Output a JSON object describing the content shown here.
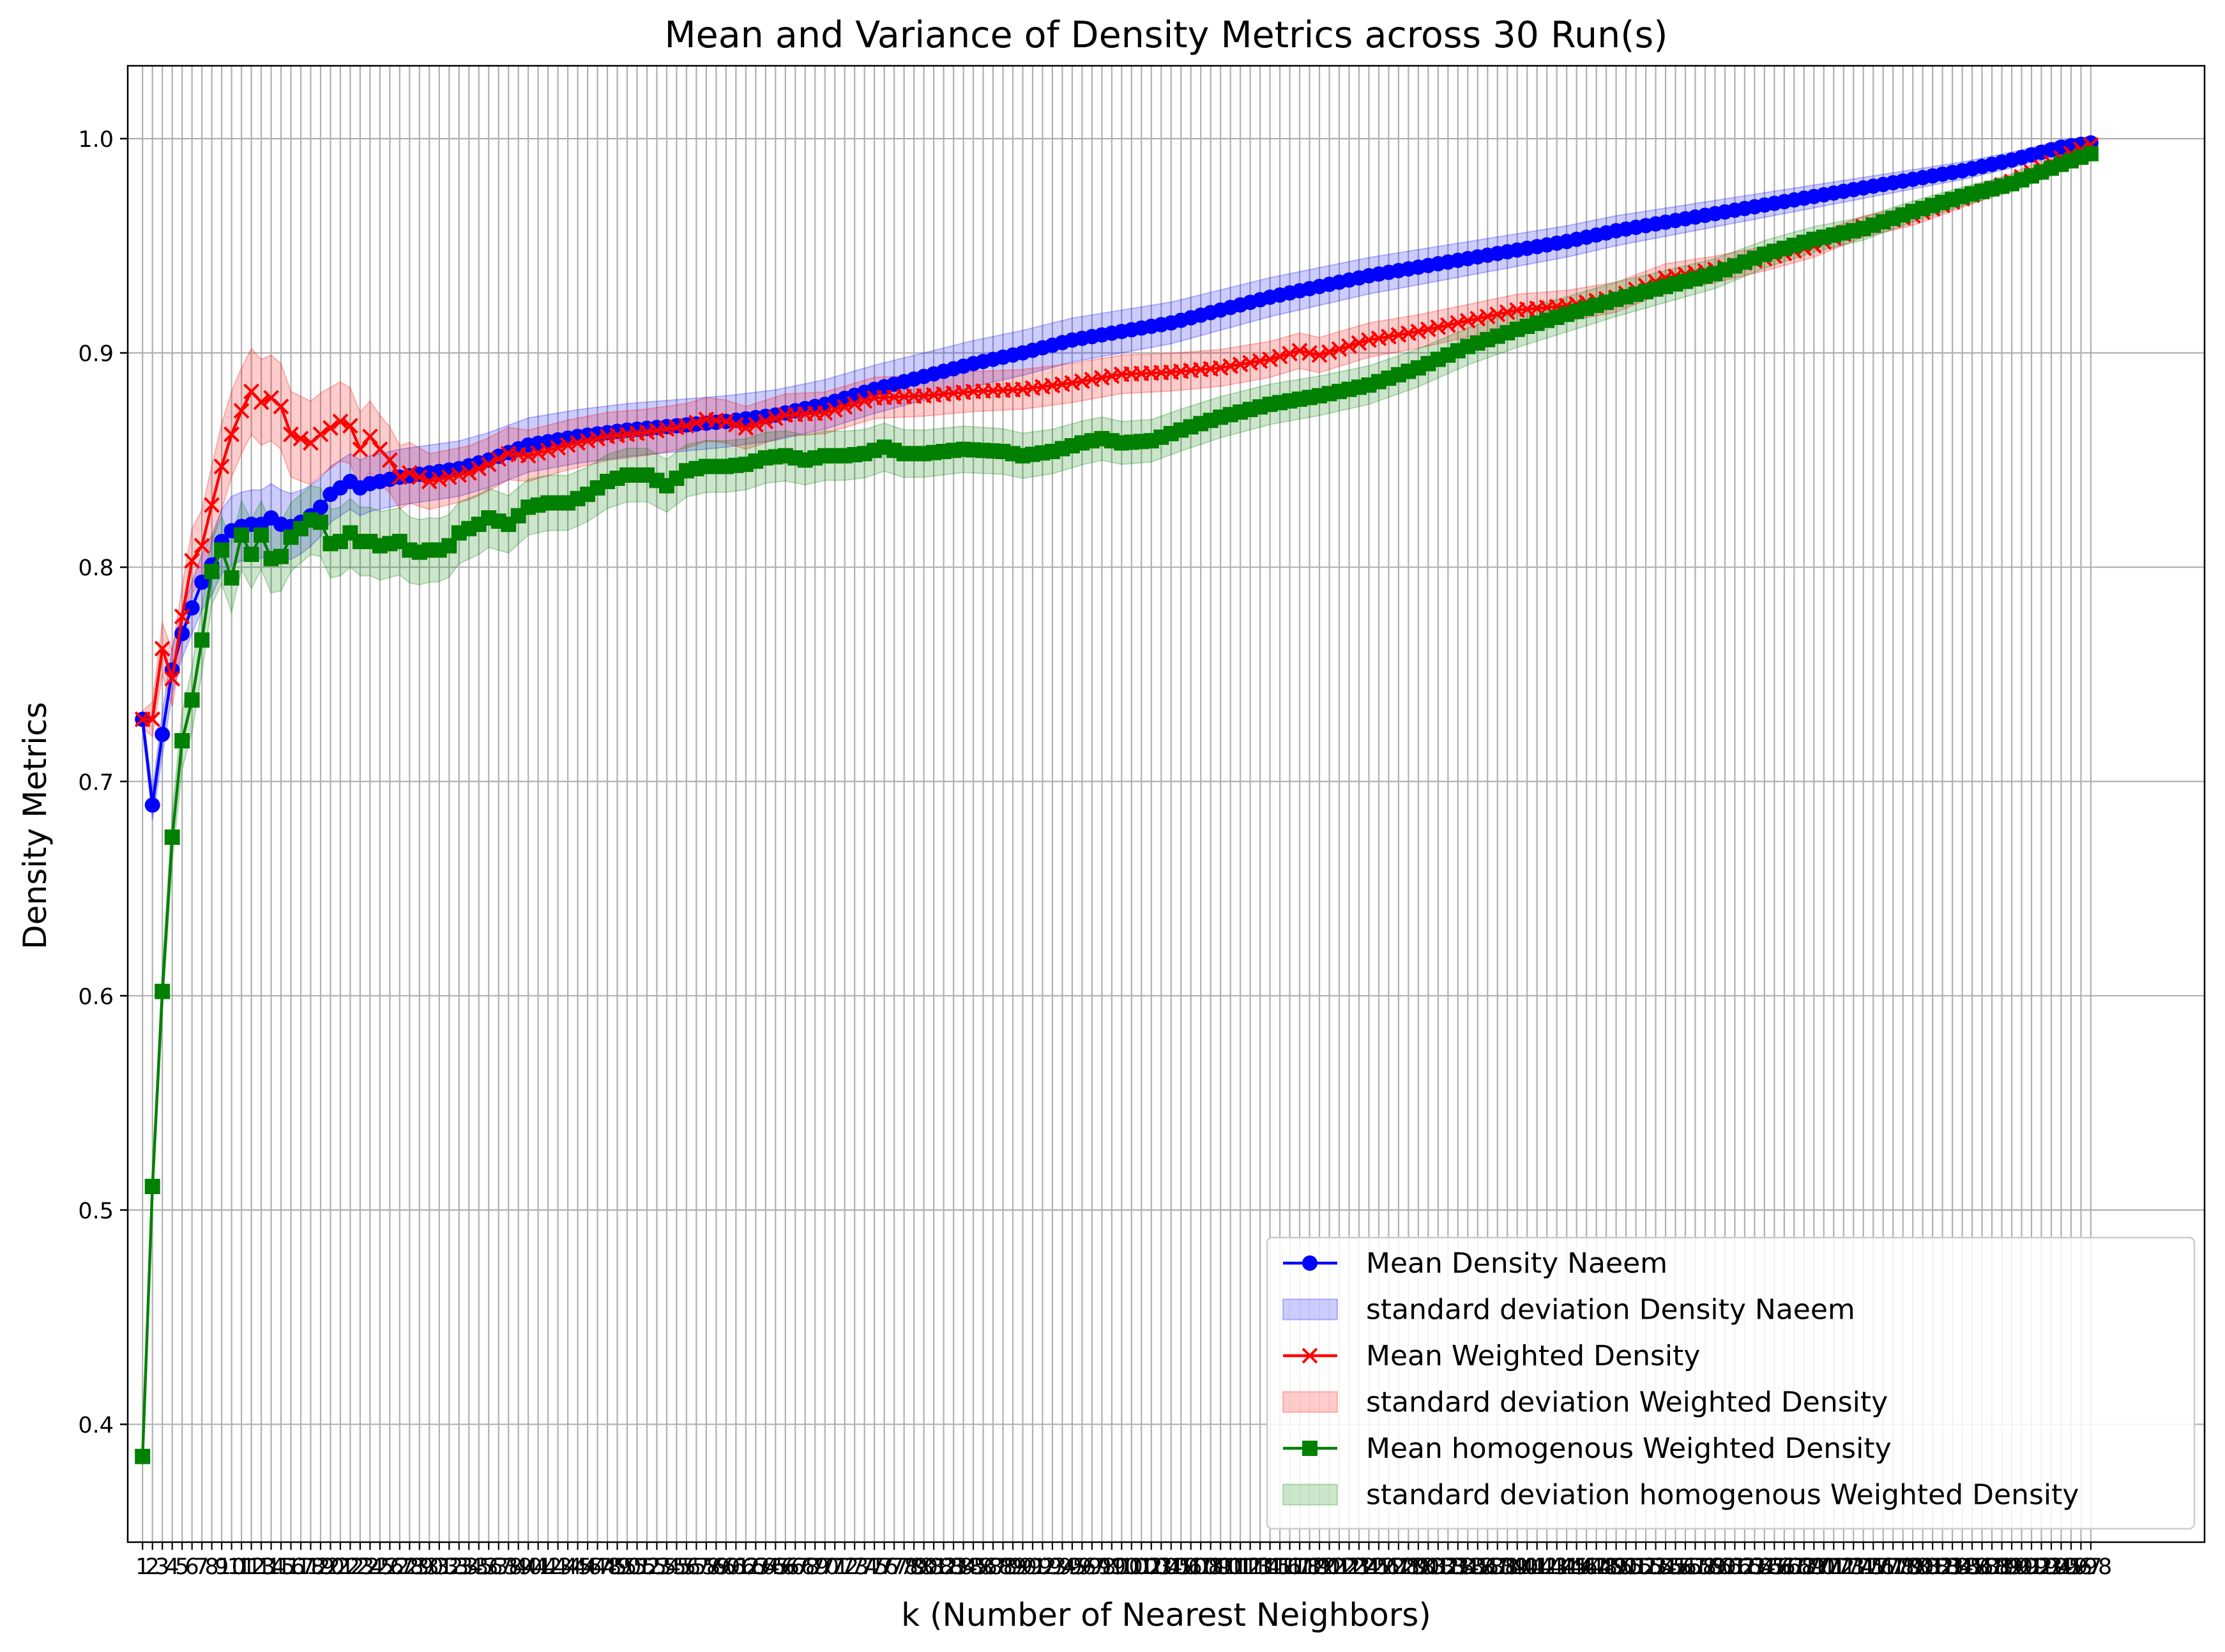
{
  "chart_data": {
    "type": "line",
    "title": "Mean and Variance of Density Metrics across 30 Run(s)",
    "xlabel": "k (Number of Nearest Neighbors)",
    "ylabel": "Density Metrics",
    "xlim": [
      -0.5,
      209.5
    ],
    "ylim": [
      0.345,
      1.034
    ],
    "k_min": 1,
    "k_max": 198,
    "y_ticks": [
      0.4,
      0.5,
      0.6,
      0.7,
      0.8,
      0.9,
      1.0
    ],
    "y_tick_labels": [
      "0.4",
      "0.5",
      "0.6",
      "0.7",
      "0.8",
      "0.9",
      "1.0"
    ],
    "grid": true,
    "legend_placement": "lower-right",
    "series": [
      {
        "name": "Mean Density Naeem",
        "band_name": "standard deviation Density Naeem",
        "color": "#0000ff",
        "marker": "circle",
        "band_color": "#0000ff",
        "anchors": [
          [
            1,
            0.729
          ],
          [
            2,
            0.689
          ],
          [
            3,
            0.722
          ],
          [
            4,
            0.752
          ],
          [
            5,
            0.769
          ],
          [
            6,
            0.781
          ],
          [
            7,
            0.793
          ],
          [
            8,
            0.801
          ],
          [
            9,
            0.812
          ],
          [
            10,
            0.817
          ],
          [
            11,
            0.819
          ],
          [
            12,
            0.82
          ],
          [
            13,
            0.82
          ],
          [
            14,
            0.823
          ],
          [
            15,
            0.82
          ],
          [
            16,
            0.819
          ],
          [
            17,
            0.821
          ],
          [
            18,
            0.824
          ],
          [
            19,
            0.828
          ],
          [
            20,
            0.834
          ],
          [
            21,
            0.837
          ],
          [
            22,
            0.84
          ],
          [
            23,
            0.837
          ],
          [
            24,
            0.839
          ],
          [
            25,
            0.84
          ],
          [
            27,
            0.842
          ],
          [
            30,
            0.844
          ],
          [
            33,
            0.846
          ],
          [
            36,
            0.85
          ],
          [
            40,
            0.857
          ],
          [
            45,
            0.861
          ],
          [
            50,
            0.864
          ],
          [
            55,
            0.866
          ],
          [
            60,
            0.868
          ],
          [
            65,
            0.871
          ],
          [
            70,
            0.876
          ],
          [
            75,
            0.883
          ],
          [
            80,
            0.889
          ],
          [
            85,
            0.895
          ],
          [
            90,
            0.9
          ],
          [
            95,
            0.906
          ],
          [
            100,
            0.91
          ],
          [
            105,
            0.914
          ],
          [
            110,
            0.92
          ],
          [
            115,
            0.926
          ],
          [
            120,
            0.931
          ],
          [
            125,
            0.936
          ],
          [
            130,
            0.94
          ],
          [
            135,
            0.944
          ],
          [
            140,
            0.948
          ],
          [
            145,
            0.952
          ],
          [
            150,
            0.957
          ],
          [
            155,
            0.961
          ],
          [
            160,
            0.965
          ],
          [
            165,
            0.969
          ],
          [
            170,
            0.973
          ],
          [
            175,
            0.977
          ],
          [
            180,
            0.981
          ],
          [
            185,
            0.985
          ],
          [
            190,
            0.99
          ],
          [
            195,
            0.996
          ],
          [
            198,
            0.998
          ]
        ],
        "band_anchors": [
          [
            1,
            0.004
          ],
          [
            3,
            0.01
          ],
          [
            6,
            0.012
          ],
          [
            10,
            0.016
          ],
          [
            15,
            0.016
          ],
          [
            20,
            0.013
          ],
          [
            30,
            0.013
          ],
          [
            60,
            0.012
          ],
          [
            100,
            0.01
          ],
          [
            150,
            0.007
          ],
          [
            198,
            0.003
          ]
        ]
      },
      {
        "name": "Mean Weighted Density",
        "band_name": "standard deviation Weighted Density",
        "color": "#ff0000",
        "marker": "x",
        "band_color": "#ff0000",
        "anchors": [
          [
            1,
            0.729
          ],
          [
            2,
            0.729
          ],
          [
            3,
            0.762
          ],
          [
            4,
            0.748
          ],
          [
            5,
            0.777
          ],
          [
            6,
            0.803
          ],
          [
            7,
            0.81
          ],
          [
            8,
            0.829
          ],
          [
            9,
            0.847
          ],
          [
            10,
            0.862
          ],
          [
            11,
            0.873
          ],
          [
            12,
            0.882
          ],
          [
            13,
            0.877
          ],
          [
            14,
            0.879
          ],
          [
            15,
            0.875
          ],
          [
            16,
            0.862
          ],
          [
            17,
            0.86
          ],
          [
            18,
            0.858
          ],
          [
            19,
            0.862
          ],
          [
            20,
            0.865
          ],
          [
            21,
            0.868
          ],
          [
            22,
            0.866
          ],
          [
            23,
            0.855
          ],
          [
            24,
            0.861
          ],
          [
            25,
            0.855
          ],
          [
            26,
            0.85
          ],
          [
            27,
            0.842
          ],
          [
            28,
            0.844
          ],
          [
            30,
            0.84
          ],
          [
            32,
            0.842
          ],
          [
            34,
            0.844
          ],
          [
            36,
            0.848
          ],
          [
            38,
            0.853
          ],
          [
            40,
            0.852
          ],
          [
            44,
            0.857
          ],
          [
            48,
            0.861
          ],
          [
            52,
            0.863
          ],
          [
            56,
            0.866
          ],
          [
            58,
            0.869
          ],
          [
            60,
            0.868
          ],
          [
            62,
            0.865
          ],
          [
            66,
            0.871
          ],
          [
            70,
            0.872
          ],
          [
            75,
            0.879
          ],
          [
            80,
            0.88
          ],
          [
            85,
            0.882
          ],
          [
            90,
            0.883
          ],
          [
            95,
            0.886
          ],
          [
            100,
            0.89
          ],
          [
            105,
            0.891
          ],
          [
            110,
            0.893
          ],
          [
            115,
            0.897
          ],
          [
            118,
            0.901
          ],
          [
            120,
            0.899
          ],
          [
            125,
            0.906
          ],
          [
            130,
            0.91
          ],
          [
            135,
            0.915
          ],
          [
            140,
            0.92
          ],
          [
            145,
            0.922
          ],
          [
            150,
            0.926
          ],
          [
            155,
            0.935
          ],
          [
            160,
            0.939
          ],
          [
            165,
            0.944
          ],
          [
            170,
            0.95
          ],
          [
            175,
            0.959
          ],
          [
            180,
            0.964
          ],
          [
            185,
            0.972
          ],
          [
            190,
            0.98
          ],
          [
            195,
            0.991
          ],
          [
            198,
            0.997
          ]
        ],
        "band_anchors": [
          [
            1,
            0.004
          ],
          [
            3,
            0.012
          ],
          [
            6,
            0.015
          ],
          [
            9,
            0.02
          ],
          [
            12,
            0.02
          ],
          [
            16,
            0.02
          ],
          [
            20,
            0.019
          ],
          [
            25,
            0.016
          ],
          [
            30,
            0.013
          ],
          [
            60,
            0.01
          ],
          [
            100,
            0.009
          ],
          [
            150,
            0.007
          ],
          [
            198,
            0.003
          ]
        ]
      },
      {
        "name": "Mean homogenous Weighted Density",
        "band_name": "standard deviation homogenous Weighted Density",
        "color": "#008000",
        "marker": "square",
        "band_color": "#008000",
        "anchors": [
          [
            1,
            0.385
          ],
          [
            2,
            0.511
          ],
          [
            3,
            0.602
          ],
          [
            4,
            0.674
          ],
          [
            5,
            0.719
          ],
          [
            6,
            0.738
          ],
          [
            7,
            0.766
          ],
          [
            8,
            0.798
          ],
          [
            9,
            0.808
          ],
          [
            10,
            0.795
          ],
          [
            11,
            0.815
          ],
          [
            12,
            0.806
          ],
          [
            13,
            0.815
          ],
          [
            14,
            0.804
          ],
          [
            15,
            0.805
          ],
          [
            16,
            0.814
          ],
          [
            17,
            0.818
          ],
          [
            18,
            0.822
          ],
          [
            19,
            0.821
          ],
          [
            20,
            0.811
          ],
          [
            21,
            0.812
          ],
          [
            22,
            0.816
          ],
          [
            23,
            0.812
          ],
          [
            24,
            0.812
          ],
          [
            25,
            0.81
          ],
          [
            26,
            0.811
          ],
          [
            27,
            0.812
          ],
          [
            28,
            0.808
          ],
          [
            29,
            0.807
          ],
          [
            30,
            0.808
          ],
          [
            31,
            0.808
          ],
          [
            32,
            0.81
          ],
          [
            33,
            0.816
          ],
          [
            35,
            0.82
          ],
          [
            36,
            0.823
          ],
          [
            38,
            0.82
          ],
          [
            40,
            0.828
          ],
          [
            42,
            0.83
          ],
          [
            44,
            0.83
          ],
          [
            46,
            0.834
          ],
          [
            48,
            0.84
          ],
          [
            50,
            0.843
          ],
          [
            52,
            0.843
          ],
          [
            54,
            0.838
          ],
          [
            56,
            0.845
          ],
          [
            58,
            0.847
          ],
          [
            60,
            0.847
          ],
          [
            62,
            0.848
          ],
          [
            64,
            0.851
          ],
          [
            66,
            0.852
          ],
          [
            68,
            0.85
          ],
          [
            70,
            0.852
          ],
          [
            72,
            0.852
          ],
          [
            74,
            0.853
          ],
          [
            76,
            0.856
          ],
          [
            78,
            0.853
          ],
          [
            80,
            0.853
          ],
          [
            84,
            0.855
          ],
          [
            88,
            0.854
          ],
          [
            90,
            0.852
          ],
          [
            93,
            0.854
          ],
          [
            96,
            0.858
          ],
          [
            98,
            0.86
          ],
          [
            100,
            0.858
          ],
          [
            103,
            0.859
          ],
          [
            106,
            0.864
          ],
          [
            110,
            0.87
          ],
          [
            115,
            0.876
          ],
          [
            120,
            0.88
          ],
          [
            125,
            0.885
          ],
          [
            130,
            0.893
          ],
          [
            135,
            0.903
          ],
          [
            140,
            0.911
          ],
          [
            145,
            0.918
          ],
          [
            150,
            0.925
          ],
          [
            155,
            0.931
          ],
          [
            160,
            0.937
          ],
          [
            165,
            0.946
          ],
          [
            170,
            0.953
          ],
          [
            175,
            0.958
          ],
          [
            180,
            0.966
          ],
          [
            185,
            0.973
          ],
          [
            190,
            0.979
          ],
          [
            195,
            0.988
          ],
          [
            198,
            0.993
          ]
        ],
        "band_anchors": [
          [
            1,
            0.004
          ],
          [
            3,
            0.01
          ],
          [
            6,
            0.015
          ],
          [
            10,
            0.016
          ],
          [
            15,
            0.016
          ],
          [
            20,
            0.016
          ],
          [
            25,
            0.016
          ],
          [
            30,
            0.015
          ],
          [
            40,
            0.013
          ],
          [
            60,
            0.012
          ],
          [
            100,
            0.01
          ],
          [
            150,
            0.008
          ],
          [
            198,
            0.003
          ]
        ]
      }
    ]
  }
}
